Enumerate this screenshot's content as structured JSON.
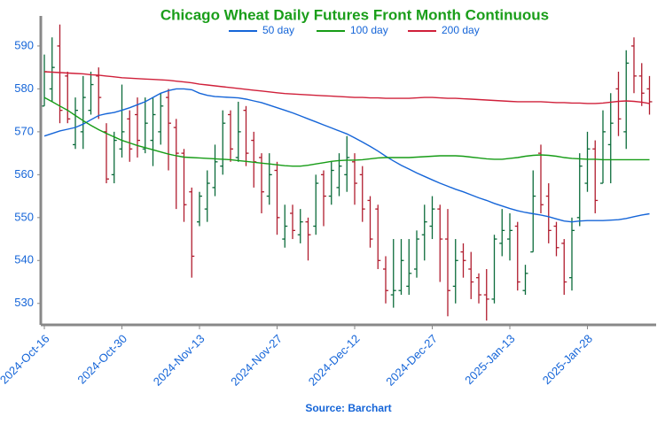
{
  "chart_data": {
    "type": "ohlc",
    "title": "Chicago Wheat Daily Futures Front Month Continuous",
    "source": "Source: Barchart",
    "categories": [
      "2024-Oct-16",
      null,
      null,
      null,
      null,
      null,
      null,
      null,
      null,
      null,
      "2024-Oct-30",
      null,
      null,
      null,
      null,
      null,
      null,
      null,
      null,
      null,
      "2024-Nov-13",
      null,
      null,
      null,
      null,
      null,
      null,
      null,
      null,
      null,
      "2024-Nov-27",
      null,
      null,
      null,
      null,
      null,
      null,
      null,
      null,
      null,
      "2024-Dec-12",
      null,
      null,
      null,
      null,
      null,
      null,
      null,
      null,
      null,
      "2024-Dec-27",
      null,
      null,
      null,
      null,
      null,
      null,
      null,
      null,
      null,
      "2025-Jan-13",
      null,
      null,
      null,
      null,
      null,
      null,
      null,
      null,
      null,
      "2025-Jan-28",
      null,
      null,
      null,
      null,
      null,
      null,
      null,
      null
    ],
    "open": [
      576,
      580,
      590,
      583,
      567,
      570,
      575,
      583,
      570,
      560,
      566,
      573,
      574,
      566,
      568,
      570,
      578,
      571,
      565,
      556,
      549,
      552,
      557,
      562,
      574,
      564,
      575,
      568,
      564,
      555,
      561,
      545,
      551,
      546,
      549,
      548,
      560,
      555,
      557,
      560,
      563,
      560,
      554,
      552,
      538,
      532,
      533,
      534,
      538,
      546,
      548,
      552,
      545,
      534,
      542,
      538,
      536,
      532,
      531,
      544,
      545,
      548,
      533,
      542,
      565,
      555,
      548,
      544,
      536,
      550,
      558,
      566,
      558,
      567,
      580,
      570,
      590,
      583,
      580
    ],
    "high": [
      588,
      592,
      595,
      584,
      578,
      583,
      584,
      585,
      572,
      570,
      581,
      575,
      578,
      578,
      578,
      579,
      580,
      573,
      566,
      557,
      556,
      561,
      567,
      575,
      575,
      577,
      576,
      570,
      565,
      565,
      563,
      553,
      553,
      552,
      550,
      560,
      561,
      563,
      565,
      569,
      565,
      562,
      555,
      553,
      541,
      545,
      545,
      545,
      547,
      553,
      555,
      553,
      552,
      545,
      544,
      542,
      537,
      538,
      546,
      552,
      551,
      549,
      539,
      561,
      567,
      558,
      549,
      545,
      550,
      565,
      570,
      568,
      575,
      579,
      584,
      589,
      592,
      586,
      583
    ],
    "low": [
      576,
      577,
      572,
      572,
      566,
      566,
      574,
      573,
      558,
      558,
      564,
      563,
      564,
      565,
      562,
      567,
      561,
      552,
      549,
      536,
      548,
      549,
      555,
      560,
      563,
      563,
      562,
      557,
      551,
      553,
      546,
      543,
      545,
      544,
      540,
      546,
      548,
      553,
      555,
      556,
      553,
      549,
      543,
      538,
      530,
      529,
      532,
      532,
      536,
      540,
      545,
      535,
      527,
      530,
      536,
      531,
      530,
      526,
      530,
      541,
      540,
      533,
      532,
      542,
      551,
      544,
      541,
      532,
      533,
      548,
      556,
      551,
      558,
      558,
      569,
      566,
      579,
      576,
      574
    ],
    "close": [
      584,
      585,
      575,
      573,
      575,
      578,
      581,
      578,
      559,
      568,
      570,
      566,
      568,
      572,
      574,
      576,
      572,
      565,
      553,
      541,
      555,
      558,
      563,
      572,
      566,
      570,
      565,
      563,
      556,
      560,
      550,
      548,
      547,
      549,
      546,
      558,
      555,
      561,
      562,
      564,
      558,
      552,
      545,
      540,
      533,
      533,
      540,
      537,
      545,
      549,
      552,
      545,
      533,
      540,
      540,
      535,
      532,
      531,
      545,
      547,
      547,
      535,
      537,
      555,
      553,
      547,
      543,
      535,
      547,
      562,
      566,
      554,
      570,
      572,
      573,
      586,
      583,
      579,
      577
    ],
    "up_color": "#0b6b3a",
    "down_color": "#b01c2e",
    "series": [
      {
        "name": "50 day",
        "color": "#1565d8",
        "values": [
          569,
          569.6,
          570.2,
          570.6,
          571,
          571.8,
          572.8,
          573.8,
          574.2,
          574.5,
          575,
          575.6,
          576.3,
          577,
          578,
          579,
          579.6,
          580,
          580,
          579.8,
          579,
          578.5,
          578.2,
          578.1,
          578,
          577.9,
          577.6,
          577.2,
          576.8,
          576.2,
          575.6,
          575,
          574.4,
          573.7,
          573,
          572.3,
          571.6,
          570.9,
          570.2,
          569.5,
          568.6,
          567.6,
          566.6,
          565.5,
          564.3,
          563.2,
          562.2,
          561.3,
          560.4,
          559.6,
          558.8,
          558,
          557.3,
          556.6,
          556,
          555.3,
          554.6,
          554,
          553.3,
          552.7,
          552.1,
          551.6,
          551.2,
          550.9,
          550.6,
          550.2,
          549.7,
          549.2,
          549,
          549.2,
          549.3,
          549.3,
          549.3,
          549.4,
          549.5,
          549.8,
          550.2,
          550.6,
          550.9
        ]
      },
      {
        "name": "100 day",
        "color": "#169c16",
        "values": [
          578,
          577,
          576,
          575,
          573.8,
          572.6,
          571.5,
          570.5,
          569.6,
          568.8,
          568,
          567.4,
          566.8,
          566.3,
          565.8,
          565.3,
          564.8,
          564.4,
          564.1,
          564,
          563.9,
          563.8,
          563.7,
          563.6,
          563.5,
          563.3,
          563.1,
          562.9,
          562.7,
          562.5,
          562.3,
          562.1,
          562,
          562,
          562.2,
          562.5,
          562.8,
          563.1,
          563.3,
          563.4,
          563.4,
          563.5,
          563.7,
          563.9,
          564,
          564,
          564,
          564,
          564.1,
          564.2,
          564.3,
          564.4,
          564.4,
          564.4,
          564.3,
          564.1,
          563.9,
          563.7,
          563.6,
          563.6,
          563.8,
          564,
          564.3,
          564.5,
          564.6,
          564.5,
          564.3,
          564,
          563.8,
          563.7,
          563.6,
          563.6,
          563.5,
          563.5,
          563.5,
          563.5,
          563.5,
          563.5,
          563.5
        ]
      },
      {
        "name": "200 day",
        "color": "#d0203a",
        "values": [
          584,
          583.9,
          583.8,
          583.7,
          583.6,
          583.5,
          583.3,
          583.2,
          583,
          582.8,
          582.6,
          582.5,
          582.4,
          582.3,
          582.2,
          582.1,
          582,
          581.8,
          581.6,
          581.4,
          581.1,
          580.9,
          580.7,
          580.5,
          580.3,
          580.1,
          579.9,
          579.7,
          579.5,
          579.3,
          579.1,
          578.9,
          578.8,
          578.7,
          578.6,
          578.5,
          578.4,
          578.3,
          578.2,
          578.1,
          578,
          578,
          577.9,
          577.9,
          577.8,
          577.8,
          577.8,
          577.8,
          577.9,
          578,
          578,
          577.9,
          577.8,
          577.8,
          577.7,
          577.6,
          577.5,
          577.4,
          577.3,
          577.2,
          577.1,
          577,
          577,
          577,
          577,
          576.9,
          576.8,
          576.8,
          576.7,
          576.7,
          576.6,
          576.6,
          576.7,
          576.9,
          577.1,
          577.2,
          577.1,
          576.9,
          576.6
        ]
      }
    ],
    "ylim": [
      525,
      597
    ],
    "yticks": [
      530,
      540,
      550,
      560,
      570,
      580,
      590
    ],
    "grid": false
  }
}
